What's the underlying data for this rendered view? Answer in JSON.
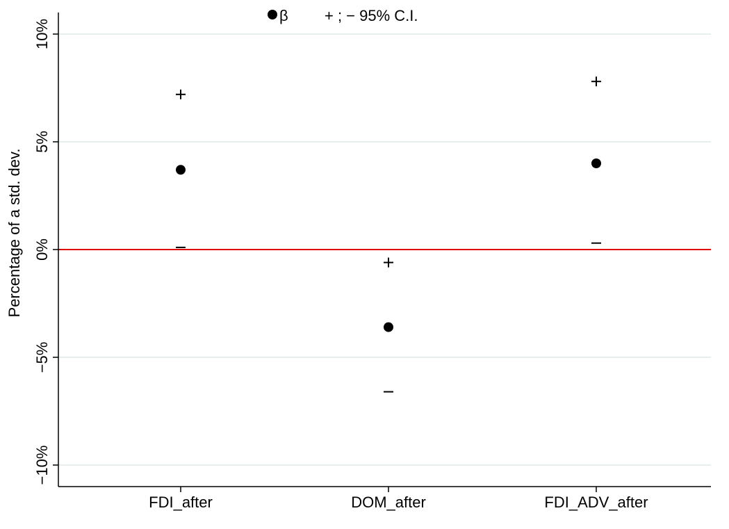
{
  "chart_data": {
    "type": "scatter",
    "ylabel": "Percentage of a std. dev.",
    "xlabel": "",
    "categories": [
      "FDI_after",
      "DOM_after",
      "FDI_ADV_after"
    ],
    "ylim": [
      -11,
      11
    ],
    "yticks": [
      10,
      5,
      0,
      -5,
      -10
    ],
    "ytick_labels": [
      "10%",
      "5%",
      "0%",
      "−5%",
      "−10%"
    ],
    "grid": true,
    "reference_line": {
      "y": 0,
      "color": "#e00000"
    },
    "series": [
      {
        "name": "β",
        "marker": "filled-circle",
        "values": [
          3.7,
          -3.6,
          4.0
        ]
      },
      {
        "name": "+",
        "marker": "plus",
        "values": [
          7.2,
          -0.6,
          7.8
        ]
      },
      {
        "name": "−",
        "marker": "minus",
        "values": [
          0.1,
          -6.6,
          0.3
        ]
      }
    ],
    "legend": {
      "position": "top",
      "entries": [
        {
          "symbol": "filled-circle",
          "label": "β"
        },
        {
          "symbol": "",
          "label": "+ ; − 95% C.I."
        }
      ]
    },
    "colors": {
      "points": "#000000",
      "grid": "#e6eeee",
      "axis": "#000000"
    }
  }
}
